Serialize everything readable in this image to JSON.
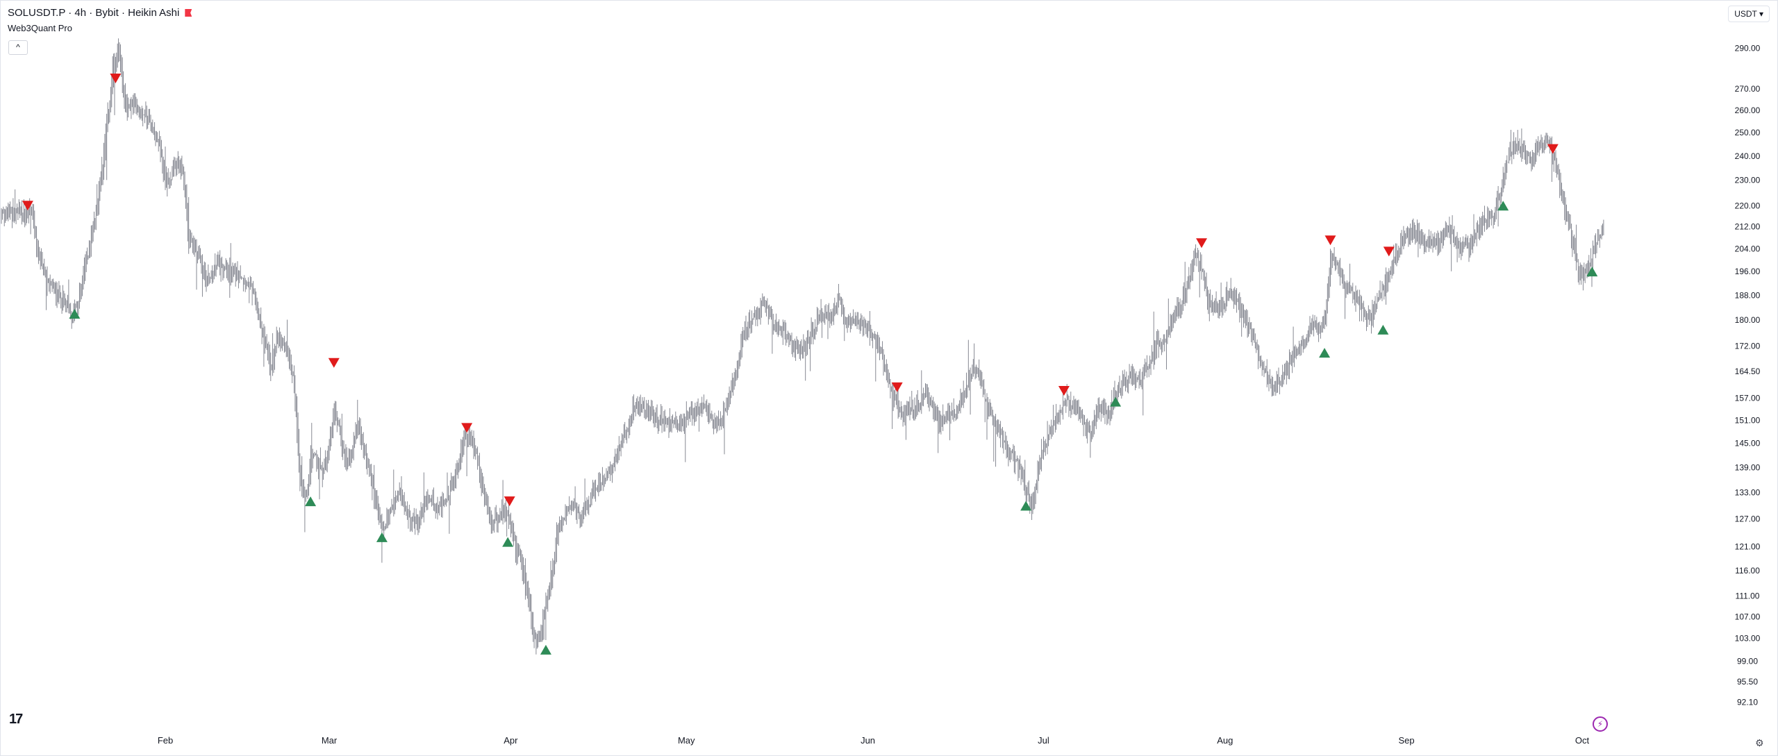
{
  "header": {
    "symbol_line": "SOLUSDT.P · 4h · Bybit · Heikin Ashi",
    "indicator": "Web3Quant Pro",
    "collapse_label": "^",
    "currency": "USDT ▾"
  },
  "colors": {
    "candle": "#787b86",
    "buy": "#2e8b57",
    "sell": "#e01b1b",
    "flag": "#f23645"
  },
  "chart_data": {
    "type": "candlestick",
    "symbol": "SOLUSDT.P",
    "interval": "4h",
    "exchange": "Bybit",
    "style": "Heikin Ashi",
    "y_scale": "log",
    "ylim": [
      90.5,
      302
    ],
    "y_ticks": [
      "290.00",
      "270.00",
      "260.00",
      "250.00",
      "240.00",
      "230.00",
      "220.00",
      "212.00",
      "204.00",
      "196.00",
      "188.00",
      "180.00",
      "172.00",
      "164.50",
      "157.00",
      "151.00",
      "145.00",
      "139.00",
      "133.00",
      "127.00",
      "121.00",
      "116.00",
      "111.00",
      "107.00",
      "103.00",
      "99.00",
      "95.50",
      "92.10"
    ],
    "x_labels": [
      {
        "label": "Feb",
        "day": 23
      },
      {
        "label": "Mar",
        "day": 51
      },
      {
        "label": "Apr",
        "day": 82
      },
      {
        "label": "May",
        "day": 112
      },
      {
        "label": "Jun",
        "day": 143
      },
      {
        "label": "Jul",
        "day": 173
      },
      {
        "label": "Aug",
        "day": 204
      },
      {
        "label": "Sep",
        "day": 235
      },
      {
        "label": "Oct",
        "day": 265
      }
    ],
    "x_start_day": -5,
    "x_end_day": 268.8,
    "price_path": [
      [
        -5,
        217
      ],
      [
        -1,
        217
      ],
      [
        0,
        220
      ],
      [
        1,
        204
      ],
      [
        3,
        191
      ],
      [
        5,
        188
      ],
      [
        6,
        185
      ],
      [
        7,
        180
      ],
      [
        8,
        186
      ],
      [
        10,
        205
      ],
      [
        12,
        230
      ],
      [
        14,
        278
      ],
      [
        15,
        292
      ],
      [
        16,
        262
      ],
      [
        18,
        262
      ],
      [
        20,
        258
      ],
      [
        22,
        245
      ],
      [
        23,
        228
      ],
      [
        25,
        236
      ],
      [
        26,
        234
      ],
      [
        27,
        208
      ],
      [
        29,
        200
      ],
      [
        30,
        192
      ],
      [
        32,
        199
      ],
      [
        34,
        196
      ],
      [
        36,
        195
      ],
      [
        38,
        188
      ],
      [
        40,
        173
      ],
      [
        41,
        165
      ],
      [
        42,
        174
      ],
      [
        44,
        170
      ],
      [
        45,
        160
      ],
      [
        46,
        136
      ],
      [
        47,
        131
      ],
      [
        48,
        143
      ],
      [
        50,
        137
      ],
      [
        52,
        154
      ],
      [
        53,
        146
      ],
      [
        54,
        138
      ],
      [
        56,
        150
      ],
      [
        58,
        136
      ],
      [
        60,
        124
      ],
      [
        61,
        128
      ],
      [
        62,
        130
      ],
      [
        63,
        133
      ],
      [
        64,
        128
      ],
      [
        66,
        126
      ],
      [
        68,
        132
      ],
      [
        70,
        129
      ],
      [
        72,
        135
      ],
      [
        73,
        140
      ],
      [
        74,
        148
      ],
      [
        75,
        146
      ],
      [
        76,
        143
      ],
      [
        77,
        135
      ],
      [
        78,
        128
      ],
      [
        79,
        126
      ],
      [
        80,
        127
      ],
      [
        81,
        129
      ],
      [
        82,
        126
      ],
      [
        83,
        120
      ],
      [
        84,
        116
      ],
      [
        85,
        110
      ],
      [
        86,
        102
      ],
      [
        87,
        103
      ],
      [
        88,
        110
      ],
      [
        89,
        115
      ],
      [
        90,
        125
      ],
      [
        92,
        130
      ],
      [
        94,
        128
      ],
      [
        96,
        133
      ],
      [
        98,
        136
      ],
      [
        100,
        142
      ],
      [
        102,
        148
      ],
      [
        103,
        156
      ],
      [
        105,
        154
      ],
      [
        107,
        152
      ],
      [
        109,
        150
      ],
      [
        111,
        150
      ],
      [
        113,
        154
      ],
      [
        115,
        154
      ],
      [
        117,
        150
      ],
      [
        118,
        151
      ],
      [
        120,
        162
      ],
      [
        122,
        178
      ],
      [
        124,
        180
      ],
      [
        125,
        186
      ],
      [
        127,
        178
      ],
      [
        129,
        175
      ],
      [
        131,
        170
      ],
      [
        133,
        174
      ],
      [
        135,
        182
      ],
      [
        137,
        181
      ],
      [
        138,
        188
      ],
      [
        139,
        178
      ],
      [
        141,
        180
      ],
      [
        142,
        178
      ],
      [
        145,
        172
      ],
      [
        147,
        158
      ],
      [
        149,
        153
      ],
      [
        151,
        154
      ],
      [
        153,
        159
      ],
      [
        155,
        150
      ],
      [
        157,
        153
      ],
      [
        158,
        152
      ],
      [
        160,
        162
      ],
      [
        161,
        165
      ],
      [
        162,
        164
      ],
      [
        163,
        155
      ],
      [
        165,
        150
      ],
      [
        167,
        143
      ],
      [
        169,
        139
      ],
      [
        170,
        133
      ],
      [
        171,
        130
      ],
      [
        172,
        138
      ],
      [
        173,
        145
      ],
      [
        175,
        150
      ],
      [
        176,
        155
      ],
      [
        177,
        157
      ],
      [
        179,
        152
      ],
      [
        181,
        148
      ],
      [
        183,
        155
      ],
      [
        184,
        151
      ],
      [
        185,
        158
      ],
      [
        186,
        160
      ],
      [
        188,
        163
      ],
      [
        190,
        163
      ],
      [
        192,
        172
      ],
      [
        194,
        175
      ],
      [
        195,
        180
      ],
      [
        197,
        188
      ],
      [
        199,
        202
      ],
      [
        200,
        196
      ],
      [
        201,
        186
      ],
      [
        203,
        184
      ],
      [
        205,
        189
      ],
      [
        206,
        186
      ],
      [
        208,
        178
      ],
      [
        210,
        168
      ],
      [
        212,
        160
      ],
      [
        214,
        164
      ],
      [
        216,
        170
      ],
      [
        218,
        176
      ],
      [
        219,
        180
      ],
      [
        220,
        175
      ],
      [
        221,
        180
      ],
      [
        222,
        200
      ],
      [
        223,
        198
      ],
      [
        225,
        190
      ],
      [
        227,
        184
      ],
      [
        229,
        180
      ],
      [
        230,
        186
      ],
      [
        232,
        196
      ],
      [
        234,
        205
      ],
      [
        236,
        212
      ],
      [
        238,
        207
      ],
      [
        240,
        206
      ],
      [
        242,
        212
      ],
      [
        244,
        203
      ],
      [
        246,
        206
      ],
      [
        248,
        214
      ],
      [
        250,
        217
      ],
      [
        251,
        225
      ],
      [
        252,
        238
      ],
      [
        254,
        245
      ],
      [
        256,
        238
      ],
      [
        258,
        245
      ],
      [
        259,
        246
      ],
      [
        260,
        240
      ],
      [
        261,
        230
      ],
      [
        262,
        218
      ],
      [
        263,
        210
      ],
      [
        264,
        200
      ],
      [
        265,
        193
      ],
      [
        266,
        198
      ],
      [
        267,
        203
      ],
      [
        268,
        210
      ],
      [
        268.8,
        213
      ]
    ],
    "signals": [
      {
        "type": "sell",
        "day": -0.5,
        "price": 220
      },
      {
        "type": "buy",
        "day": 7.5,
        "price": 182
      },
      {
        "type": "sell",
        "day": 14.5,
        "price": 275
      },
      {
        "type": "buy",
        "day": 47.8,
        "price": 131
      },
      {
        "type": "sell",
        "day": 51.8,
        "price": 167
      },
      {
        "type": "buy",
        "day": 60,
        "price": 123
      },
      {
        "type": "sell",
        "day": 74.5,
        "price": 149
      },
      {
        "type": "buy",
        "day": 81.5,
        "price": 122
      },
      {
        "type": "sell",
        "day": 81.8,
        "price": 131
      },
      {
        "type": "buy",
        "day": 88,
        "price": 101
      },
      {
        "type": "sell",
        "day": 148,
        "price": 160
      },
      {
        "type": "buy",
        "day": 170,
        "price": 130
      },
      {
        "type": "sell",
        "day": 176.5,
        "price": 159
      },
      {
        "type": "buy",
        "day": 185.3,
        "price": 156
      },
      {
        "type": "sell",
        "day": 200,
        "price": 206
      },
      {
        "type": "buy",
        "day": 221,
        "price": 170
      },
      {
        "type": "sell",
        "day": 222,
        "price": 207
      },
      {
        "type": "buy",
        "day": 231,
        "price": 177
      },
      {
        "type": "sell",
        "day": 232,
        "price": 203
      },
      {
        "type": "buy",
        "day": 251.5,
        "price": 220
      },
      {
        "type": "sell",
        "day": 260,
        "price": 243
      },
      {
        "type": "buy",
        "day": 266.7,
        "price": 196
      }
    ]
  }
}
